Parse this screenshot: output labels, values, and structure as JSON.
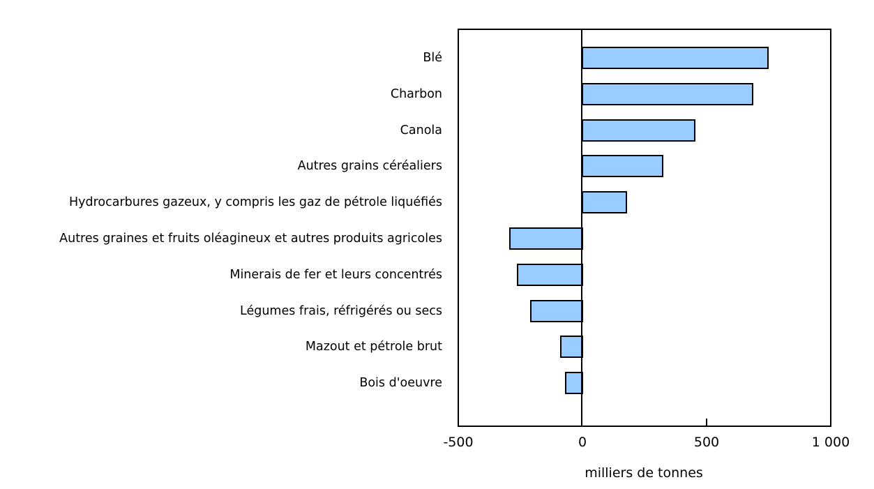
{
  "chart_data": {
    "type": "bar",
    "orientation": "horizontal",
    "title": "",
    "xlabel": "milliers de tonnes",
    "ylabel": "",
    "xlim": [
      -500,
      1000
    ],
    "xticks": [
      "-500",
      "0",
      "500",
      "1 000"
    ],
    "grid": false,
    "legend": null,
    "bar_color": "#99ccff",
    "categories": [
      "Blé",
      "Charbon",
      "Canola",
      "Autres grains céréaliers",
      "Hydrocarbures gazeux, y compris les gaz de pétrole liquéfiés",
      "Autres graines et fruits oléagineux et autres produits agricoles",
      "Minerais de fer et leurs concentrés",
      "Légumes frais, réfrigérés ou secs",
      "Mazout et pétrole brut",
      "Bois d'oeuvre"
    ],
    "values": [
      750,
      688,
      455,
      326,
      180,
      -295,
      -264,
      -211,
      -90,
      -70
    ]
  }
}
